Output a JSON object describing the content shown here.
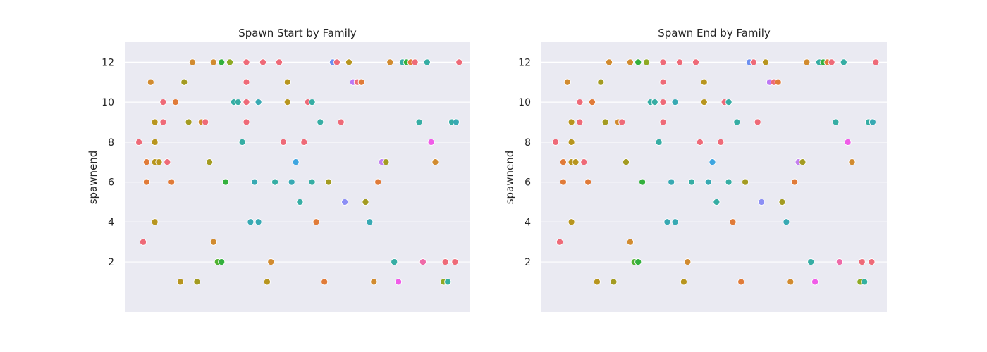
{
  "chart_data": [
    {
      "type": "scatter",
      "title": "Spawn Start by Family",
      "xlabel": "",
      "ylabel": "spawnend",
      "ylim": [
        -0.5,
        13.0
      ],
      "xlim": [
        0,
        100
      ],
      "yticks": [
        2,
        4,
        6,
        8,
        10,
        12
      ],
      "x_ticks_visible": false,
      "grid": "horizontal",
      "points": [
        {
          "x": 4.1,
          "y": 8,
          "color": "#ee6a78"
        },
        {
          "x": 5.3,
          "y": 3,
          "color": "#ee6a78"
        },
        {
          "x": 6.3,
          "y": 7,
          "color": "#e07b39"
        },
        {
          "x": 6.3,
          "y": 6,
          "color": "#e07b39"
        },
        {
          "x": 7.5,
          "y": 11,
          "color": "#d18b30"
        },
        {
          "x": 8.7,
          "y": 9,
          "color": "#b7951f"
        },
        {
          "x": 8.7,
          "y": 8,
          "color": "#b7951f"
        },
        {
          "x": 8.7,
          "y": 7,
          "color": "#b7951f"
        },
        {
          "x": 8.7,
          "y": 4,
          "color": "#b7951f"
        },
        {
          "x": 9.9,
          "y": 7,
          "color": "#b7951f"
        },
        {
          "x": 11.1,
          "y": 10,
          "color": "#ee6a78"
        },
        {
          "x": 11.1,
          "y": 9,
          "color": "#ee6a78"
        },
        {
          "x": 12.3,
          "y": 7,
          "color": "#ee6a78"
        },
        {
          "x": 13.5,
          "y": 6,
          "color": "#e07b39"
        },
        {
          "x": 14.7,
          "y": 10,
          "color": "#e07b39"
        },
        {
          "x": 16.1,
          "y": 1,
          "color": "#b7951f"
        },
        {
          "x": 17.2,
          "y": 11,
          "color": "#a39b22"
        },
        {
          "x": 18.5,
          "y": 9,
          "color": "#a39b22"
        },
        {
          "x": 19.6,
          "y": 12,
          "color": "#d18b30"
        },
        {
          "x": 20.9,
          "y": 1,
          "color": "#a39b22"
        },
        {
          "x": 22.2,
          "y": 9,
          "color": "#d18b30"
        },
        {
          "x": 23.3,
          "y": 9,
          "color": "#ee6a78"
        },
        {
          "x": 24.5,
          "y": 7,
          "color": "#a39b22"
        },
        {
          "x": 25.7,
          "y": 12,
          "color": "#d18b30"
        },
        {
          "x": 25.7,
          "y": 3,
          "color": "#d18b30"
        },
        {
          "x": 26.9,
          "y": 2,
          "color": "#50b131"
        },
        {
          "x": 28.0,
          "y": 12,
          "color": "#33b03d"
        },
        {
          "x": 28.0,
          "y": 2,
          "color": "#33b03d"
        },
        {
          "x": 29.2,
          "y": 6,
          "color": "#33b03d"
        },
        {
          "x": 30.4,
          "y": 12,
          "color": "#8ea924"
        },
        {
          "x": 31.6,
          "y": 10,
          "color": "#36ada4"
        },
        {
          "x": 32.8,
          "y": 10,
          "color": "#36ada4"
        },
        {
          "x": 34.0,
          "y": 8,
          "color": "#36ada4"
        },
        {
          "x": 35.2,
          "y": 12,
          "color": "#ee6a78"
        },
        {
          "x": 35.2,
          "y": 11,
          "color": "#ee6a78"
        },
        {
          "x": 35.2,
          "y": 10,
          "color": "#ee6a78"
        },
        {
          "x": 35.2,
          "y": 9,
          "color": "#ee6a78"
        },
        {
          "x": 36.4,
          "y": 4,
          "color": "#38a9b3"
        },
        {
          "x": 37.6,
          "y": 6,
          "color": "#38a9b3"
        },
        {
          "x": 38.7,
          "y": 10,
          "color": "#38a9b3"
        },
        {
          "x": 38.7,
          "y": 4,
          "color": "#38a9b3"
        },
        {
          "x": 40.0,
          "y": 12,
          "color": "#ee6a78"
        },
        {
          "x": 41.2,
          "y": 1,
          "color": "#b7951f"
        },
        {
          "x": 42.3,
          "y": 2,
          "color": "#d18b30"
        },
        {
          "x": 43.5,
          "y": 6,
          "color": "#36ada4"
        },
        {
          "x": 44.7,
          "y": 12,
          "color": "#ee6a78"
        },
        {
          "x": 45.9,
          "y": 8,
          "color": "#ee6a78"
        },
        {
          "x": 47.1,
          "y": 11,
          "color": "#b7951f"
        },
        {
          "x": 47.1,
          "y": 10,
          "color": "#b7951f"
        },
        {
          "x": 48.3,
          "y": 6,
          "color": "#38a9b3"
        },
        {
          "x": 49.5,
          "y": 7,
          "color": "#3fa5e0"
        },
        {
          "x": 50.7,
          "y": 5,
          "color": "#36ada4"
        },
        {
          "x": 51.9,
          "y": 8,
          "color": "#ee6a78"
        },
        {
          "x": 53.0,
          "y": 10,
          "color": "#ee6a78"
        },
        {
          "x": 54.2,
          "y": 10,
          "color": "#36ada4"
        },
        {
          "x": 54.2,
          "y": 6,
          "color": "#36ada4"
        },
        {
          "x": 55.4,
          "y": 4,
          "color": "#e07b39"
        },
        {
          "x": 56.6,
          "y": 9,
          "color": "#36ada4"
        },
        {
          "x": 57.8,
          "y": 1,
          "color": "#e07b39"
        },
        {
          "x": 59.0,
          "y": 6,
          "color": "#a39b22"
        },
        {
          "x": 60.2,
          "y": 12,
          "color": "#6c8ff0"
        },
        {
          "x": 61.4,
          "y": 12,
          "color": "#ee6a78"
        },
        {
          "x": 62.6,
          "y": 9,
          "color": "#ee6a78"
        },
        {
          "x": 63.7,
          "y": 5,
          "color": "#8c8ff5"
        },
        {
          "x": 64.9,
          "y": 12,
          "color": "#b7951f"
        },
        {
          "x": 66.1,
          "y": 11,
          "color": "#bc78f5"
        },
        {
          "x": 67.3,
          "y": 11,
          "color": "#ee6a78"
        },
        {
          "x": 68.5,
          "y": 11,
          "color": "#e07b39"
        },
        {
          "x": 69.7,
          "y": 5,
          "color": "#a39b22"
        },
        {
          "x": 70.9,
          "y": 4,
          "color": "#38a9b3"
        },
        {
          "x": 72.1,
          "y": 1,
          "color": "#d18b30"
        },
        {
          "x": 73.3,
          "y": 6,
          "color": "#e07b39"
        },
        {
          "x": 74.4,
          "y": 7,
          "color": "#c37ff0"
        },
        {
          "x": 75.6,
          "y": 7,
          "color": "#a39b22"
        },
        {
          "x": 76.8,
          "y": 12,
          "color": "#d18b30"
        },
        {
          "x": 78.0,
          "y": 2,
          "color": "#36ada4"
        },
        {
          "x": 79.2,
          "y": 1,
          "color": "#f05ce8"
        },
        {
          "x": 80.4,
          "y": 12,
          "color": "#36ada4"
        },
        {
          "x": 81.6,
          "y": 12,
          "color": "#33b03d"
        },
        {
          "x": 82.8,
          "y": 12,
          "color": "#e07b39"
        },
        {
          "x": 84.0,
          "y": 12,
          "color": "#ee6a78"
        },
        {
          "x": 85.2,
          "y": 9,
          "color": "#36ada4"
        },
        {
          "x": 86.3,
          "y": 2,
          "color": "#ee6aa8"
        },
        {
          "x": 87.5,
          "y": 12,
          "color": "#36ada4"
        },
        {
          "x": 88.7,
          "y": 8,
          "color": "#f05ce8"
        },
        {
          "x": 89.9,
          "y": 7,
          "color": "#d18b30"
        },
        {
          "x": 92.3,
          "y": 1,
          "color": "#8ea924"
        },
        {
          "x": 93.5,
          "y": 1,
          "color": "#33b0a0"
        },
        {
          "x": 92.8,
          "y": 2,
          "color": "#ee6a78"
        },
        {
          "x": 94.7,
          "y": 9,
          "color": "#36ada4"
        },
        {
          "x": 95.9,
          "y": 9,
          "color": "#38a9b3"
        },
        {
          "x": 95.6,
          "y": 2,
          "color": "#ee6a78"
        },
        {
          "x": 96.8,
          "y": 12,
          "color": "#ee6a78"
        }
      ]
    },
    {
      "type": "scatter",
      "title": "Spawn End by Family",
      "xlabel": "",
      "ylabel": "spawnend",
      "ylim": [
        -0.5,
        13.0
      ],
      "xlim": [
        0,
        100
      ],
      "yticks": [
        2,
        4,
        6,
        8,
        10,
        12
      ],
      "x_ticks_visible": false,
      "grid": "horizontal",
      "points": [
        {
          "x": 4.1,
          "y": 8,
          "color": "#ee6a78"
        },
        {
          "x": 5.3,
          "y": 3,
          "color": "#ee6a78"
        },
        {
          "x": 6.3,
          "y": 7,
          "color": "#e07b39"
        },
        {
          "x": 6.3,
          "y": 6,
          "color": "#e07b39"
        },
        {
          "x": 7.5,
          "y": 11,
          "color": "#d18b30"
        },
        {
          "x": 8.7,
          "y": 9,
          "color": "#b7951f"
        },
        {
          "x": 8.7,
          "y": 8,
          "color": "#b7951f"
        },
        {
          "x": 8.7,
          "y": 7,
          "color": "#b7951f"
        },
        {
          "x": 8.7,
          "y": 4,
          "color": "#b7951f"
        },
        {
          "x": 9.9,
          "y": 7,
          "color": "#b7951f"
        },
        {
          "x": 11.1,
          "y": 10,
          "color": "#ee6a78"
        },
        {
          "x": 11.1,
          "y": 9,
          "color": "#ee6a78"
        },
        {
          "x": 12.3,
          "y": 7,
          "color": "#ee6a78"
        },
        {
          "x": 13.5,
          "y": 6,
          "color": "#e07b39"
        },
        {
          "x": 14.7,
          "y": 10,
          "color": "#e07b39"
        },
        {
          "x": 16.1,
          "y": 1,
          "color": "#b7951f"
        },
        {
          "x": 17.2,
          "y": 11,
          "color": "#a39b22"
        },
        {
          "x": 18.5,
          "y": 9,
          "color": "#a39b22"
        },
        {
          "x": 19.6,
          "y": 12,
          "color": "#d18b30"
        },
        {
          "x": 20.9,
          "y": 1,
          "color": "#a39b22"
        },
        {
          "x": 22.2,
          "y": 9,
          "color": "#d18b30"
        },
        {
          "x": 23.3,
          "y": 9,
          "color": "#ee6a78"
        },
        {
          "x": 24.5,
          "y": 7,
          "color": "#a39b22"
        },
        {
          "x": 25.7,
          "y": 12,
          "color": "#d18b30"
        },
        {
          "x": 25.7,
          "y": 3,
          "color": "#d18b30"
        },
        {
          "x": 26.9,
          "y": 2,
          "color": "#50b131"
        },
        {
          "x": 28.0,
          "y": 12,
          "color": "#33b03d"
        },
        {
          "x": 28.0,
          "y": 2,
          "color": "#33b03d"
        },
        {
          "x": 29.2,
          "y": 6,
          "color": "#33b03d"
        },
        {
          "x": 30.4,
          "y": 12,
          "color": "#8ea924"
        },
        {
          "x": 31.6,
          "y": 10,
          "color": "#36ada4"
        },
        {
          "x": 32.8,
          "y": 10,
          "color": "#36ada4"
        },
        {
          "x": 34.0,
          "y": 8,
          "color": "#36ada4"
        },
        {
          "x": 35.2,
          "y": 12,
          "color": "#ee6a78"
        },
        {
          "x": 35.2,
          "y": 11,
          "color": "#ee6a78"
        },
        {
          "x": 35.2,
          "y": 10,
          "color": "#ee6a78"
        },
        {
          "x": 35.2,
          "y": 9,
          "color": "#ee6a78"
        },
        {
          "x": 36.4,
          "y": 4,
          "color": "#38a9b3"
        },
        {
          "x": 37.6,
          "y": 6,
          "color": "#38a9b3"
        },
        {
          "x": 38.7,
          "y": 10,
          "color": "#38a9b3"
        },
        {
          "x": 38.7,
          "y": 4,
          "color": "#38a9b3"
        },
        {
          "x": 40.0,
          "y": 12,
          "color": "#ee6a78"
        },
        {
          "x": 41.2,
          "y": 1,
          "color": "#b7951f"
        },
        {
          "x": 42.3,
          "y": 2,
          "color": "#d18b30"
        },
        {
          "x": 43.5,
          "y": 6,
          "color": "#36ada4"
        },
        {
          "x": 44.7,
          "y": 12,
          "color": "#ee6a78"
        },
        {
          "x": 45.9,
          "y": 8,
          "color": "#ee6a78"
        },
        {
          "x": 47.1,
          "y": 11,
          "color": "#b7951f"
        },
        {
          "x": 47.1,
          "y": 10,
          "color": "#b7951f"
        },
        {
          "x": 48.3,
          "y": 6,
          "color": "#38a9b3"
        },
        {
          "x": 49.5,
          "y": 7,
          "color": "#3fa5e0"
        },
        {
          "x": 50.7,
          "y": 5,
          "color": "#36ada4"
        },
        {
          "x": 51.9,
          "y": 8,
          "color": "#ee6a78"
        },
        {
          "x": 53.0,
          "y": 10,
          "color": "#ee6a78"
        },
        {
          "x": 54.2,
          "y": 10,
          "color": "#36ada4"
        },
        {
          "x": 54.2,
          "y": 6,
          "color": "#36ada4"
        },
        {
          "x": 55.4,
          "y": 4,
          "color": "#e07b39"
        },
        {
          "x": 56.6,
          "y": 9,
          "color": "#36ada4"
        },
        {
          "x": 57.8,
          "y": 1,
          "color": "#e07b39"
        },
        {
          "x": 59.0,
          "y": 6,
          "color": "#a39b22"
        },
        {
          "x": 60.2,
          "y": 12,
          "color": "#6c8ff0"
        },
        {
          "x": 61.4,
          "y": 12,
          "color": "#ee6a78"
        },
        {
          "x": 62.6,
          "y": 9,
          "color": "#ee6a78"
        },
        {
          "x": 63.7,
          "y": 5,
          "color": "#8c8ff5"
        },
        {
          "x": 64.9,
          "y": 12,
          "color": "#b7951f"
        },
        {
          "x": 66.1,
          "y": 11,
          "color": "#bc78f5"
        },
        {
          "x": 67.3,
          "y": 11,
          "color": "#ee6a78"
        },
        {
          "x": 68.5,
          "y": 11,
          "color": "#e07b39"
        },
        {
          "x": 69.7,
          "y": 5,
          "color": "#a39b22"
        },
        {
          "x": 70.9,
          "y": 4,
          "color": "#38a9b3"
        },
        {
          "x": 72.1,
          "y": 1,
          "color": "#d18b30"
        },
        {
          "x": 73.3,
          "y": 6,
          "color": "#e07b39"
        },
        {
          "x": 74.4,
          "y": 7,
          "color": "#c37ff0"
        },
        {
          "x": 75.6,
          "y": 7,
          "color": "#a39b22"
        },
        {
          "x": 76.8,
          "y": 12,
          "color": "#d18b30"
        },
        {
          "x": 78.0,
          "y": 2,
          "color": "#36ada4"
        },
        {
          "x": 79.2,
          "y": 1,
          "color": "#f05ce8"
        },
        {
          "x": 80.4,
          "y": 12,
          "color": "#36ada4"
        },
        {
          "x": 81.6,
          "y": 12,
          "color": "#33b03d"
        },
        {
          "x": 82.8,
          "y": 12,
          "color": "#e07b39"
        },
        {
          "x": 84.0,
          "y": 12,
          "color": "#ee6a78"
        },
        {
          "x": 85.2,
          "y": 9,
          "color": "#36ada4"
        },
        {
          "x": 86.3,
          "y": 2,
          "color": "#ee6aa8"
        },
        {
          "x": 87.5,
          "y": 12,
          "color": "#36ada4"
        },
        {
          "x": 88.7,
          "y": 8,
          "color": "#f05ce8"
        },
        {
          "x": 89.9,
          "y": 7,
          "color": "#d18b30"
        },
        {
          "x": 92.3,
          "y": 1,
          "color": "#8ea924"
        },
        {
          "x": 93.5,
          "y": 1,
          "color": "#33b0a0"
        },
        {
          "x": 92.8,
          "y": 2,
          "color": "#ee6a78"
        },
        {
          "x": 94.7,
          "y": 9,
          "color": "#36ada4"
        },
        {
          "x": 95.9,
          "y": 9,
          "color": "#38a9b3"
        },
        {
          "x": 95.6,
          "y": 2,
          "color": "#ee6a78"
        },
        {
          "x": 96.8,
          "y": 12,
          "color": "#ee6a78"
        }
      ]
    }
  ]
}
